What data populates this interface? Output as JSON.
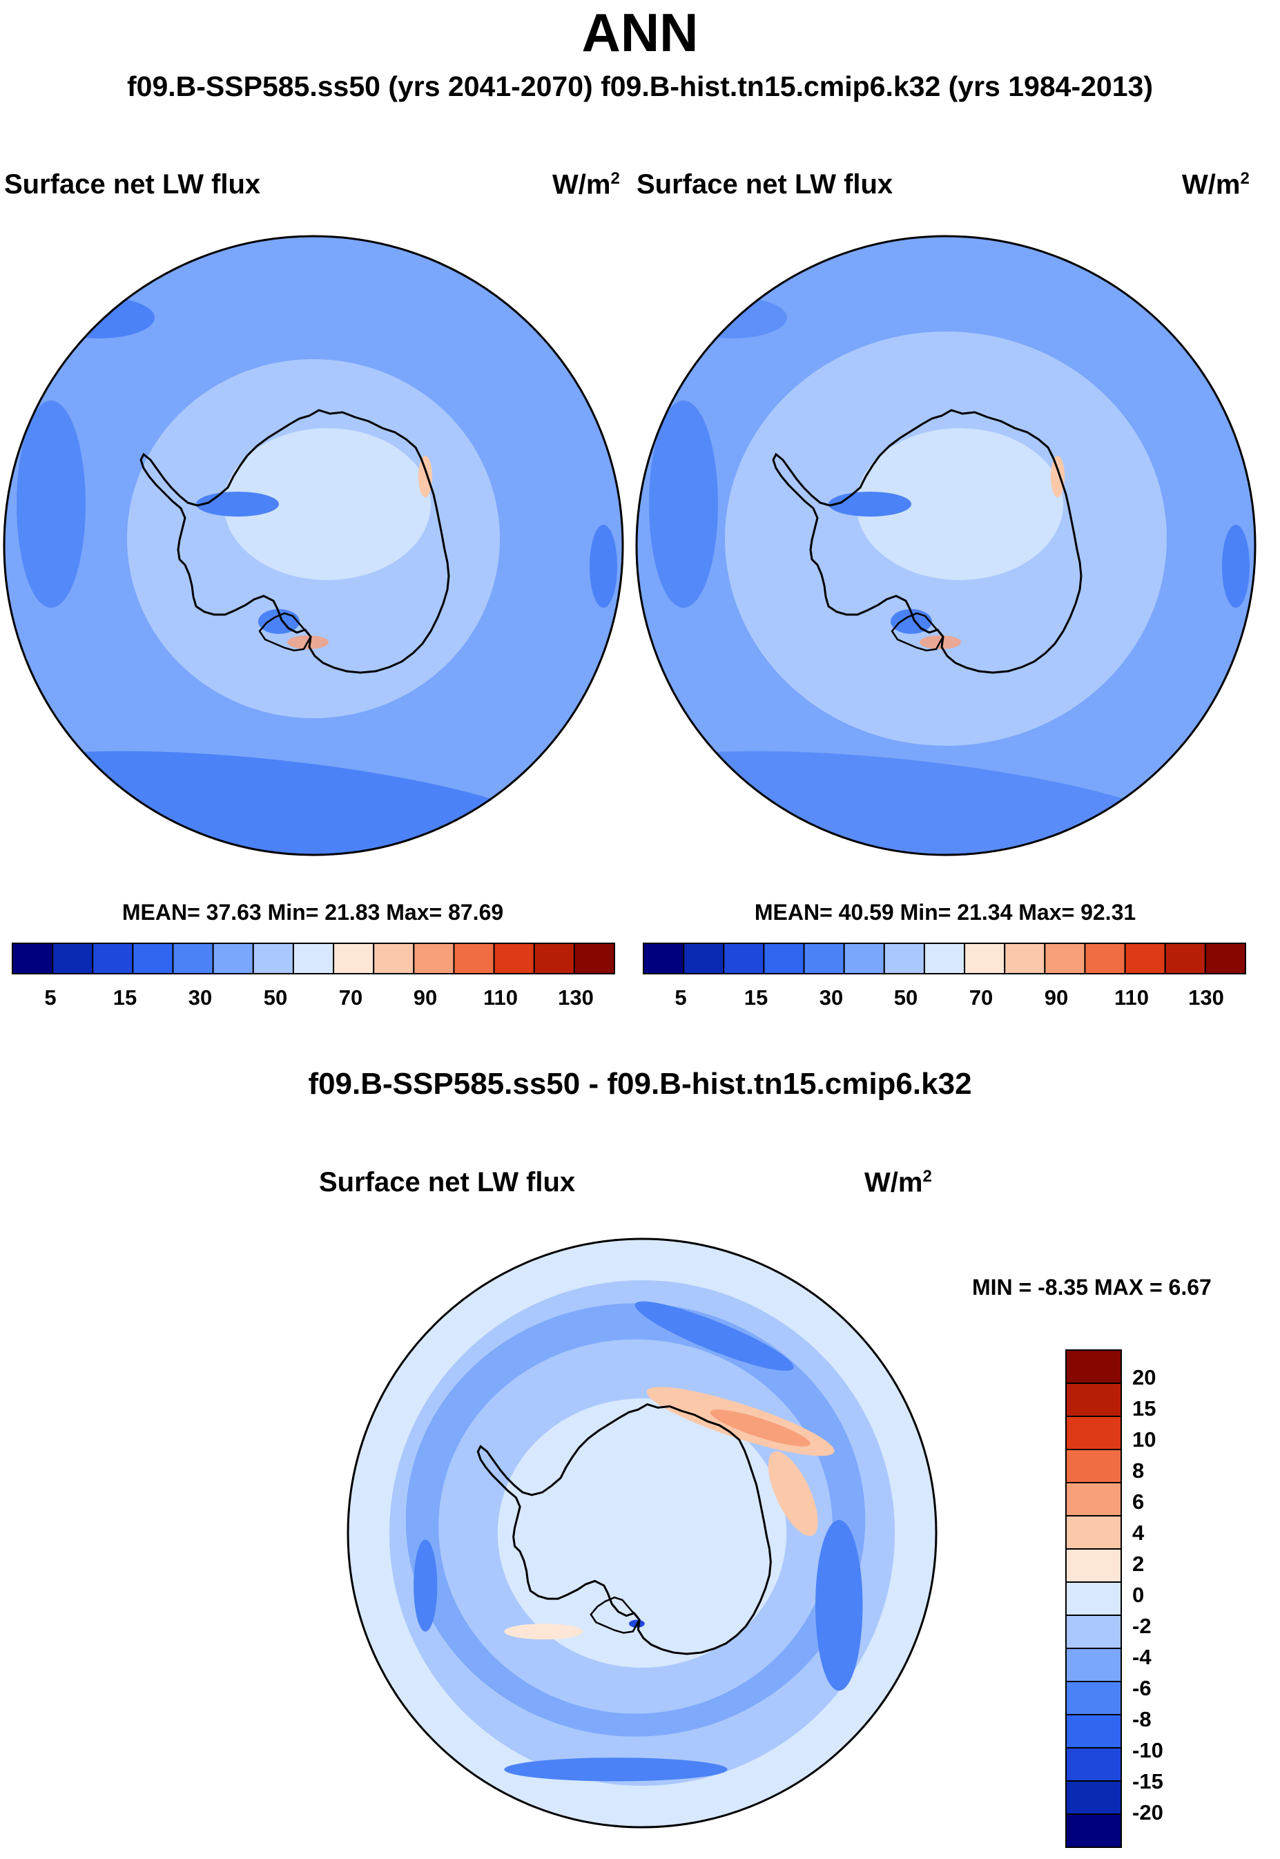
{
  "header": {
    "title": "ANN",
    "runs_line": "f09.B-SSP585.ss50 (yrs 2041-2070)  f09.B-hist.tn15.cmip6.k32 (yrs 1984-2013)"
  },
  "chart_data": [
    {
      "type": "polar_contour_map",
      "region": "Antarctica / Southern Ocean (south polar stereographic)",
      "title": "Surface net LW flux",
      "units": "W/m",
      "units_power": "2",
      "stats_text": "MEAN=  37.63  Min=  21.83  Max=  87.69",
      "mean": 37.63,
      "min": 21.83,
      "max": 87.69,
      "colorbar": {
        "orientation": "horizontal",
        "colors": [
          "#00007f",
          "#0a2ab3",
          "#1e48dc",
          "#2f66f2",
          "#4b82f7",
          "#7aa6fb",
          "#aac8fd",
          "#d8e8fe",
          "#fde6d6",
          "#fbc8aa",
          "#f7a07a",
          "#f06d44",
          "#dd3a15",
          "#b81e06",
          "#860600"
        ],
        "tick_labels": [
          "5",
          "15",
          "30",
          "50",
          "70",
          "90",
          "110",
          "130"
        ]
      }
    },
    {
      "type": "polar_contour_map",
      "region": "Antarctica / Southern Ocean (south polar stereographic)",
      "title": "Surface net LW flux",
      "units": "W/m",
      "units_power": "2",
      "stats_text": "MEAN=  40.59  Min=  21.34  Max=  92.31",
      "mean": 40.59,
      "min": 21.34,
      "max": 92.31,
      "colorbar": {
        "orientation": "horizontal",
        "colors": [
          "#00007f",
          "#0a2ab3",
          "#1e48dc",
          "#2f66f2",
          "#4b82f7",
          "#7aa6fb",
          "#aac8fd",
          "#d8e8fe",
          "#fde6d6",
          "#fbc8aa",
          "#f7a07a",
          "#f06d44",
          "#dd3a15",
          "#b81e06",
          "#860600"
        ],
        "tick_labels": [
          "5",
          "15",
          "30",
          "50",
          "70",
          "90",
          "110",
          "130"
        ]
      }
    },
    {
      "type": "polar_contour_map",
      "region": "Antarctica / Southern Ocean (south polar stereographic)",
      "diff_title": "f09.B-SSP585.ss50 - f09.B-hist.tn15.cmip6.k32",
      "title": "Surface net LW flux",
      "units": "W/m",
      "units_power": "2",
      "stats_text": "MIN =  -8.35 MAX =   6.67",
      "min": -8.35,
      "max": 6.67,
      "colorbar": {
        "orientation": "vertical",
        "colors_top_to_bottom": [
          "#860600",
          "#b81e06",
          "#dd3a15",
          "#f06d44",
          "#f7a07a",
          "#fbc8aa",
          "#fde6d6",
          "#d8e8fe",
          "#aac8fd",
          "#7aa6fb",
          "#4b82f7",
          "#2f66f2",
          "#1e48dc",
          "#0a2ab3",
          "#00007f"
        ],
        "labels": [
          "20",
          "15",
          "10",
          "8",
          "6",
          "4",
          "2",
          "0",
          "-2",
          "-4",
          "-6",
          "-8",
          "-10",
          "-15",
          "-20"
        ]
      }
    }
  ]
}
